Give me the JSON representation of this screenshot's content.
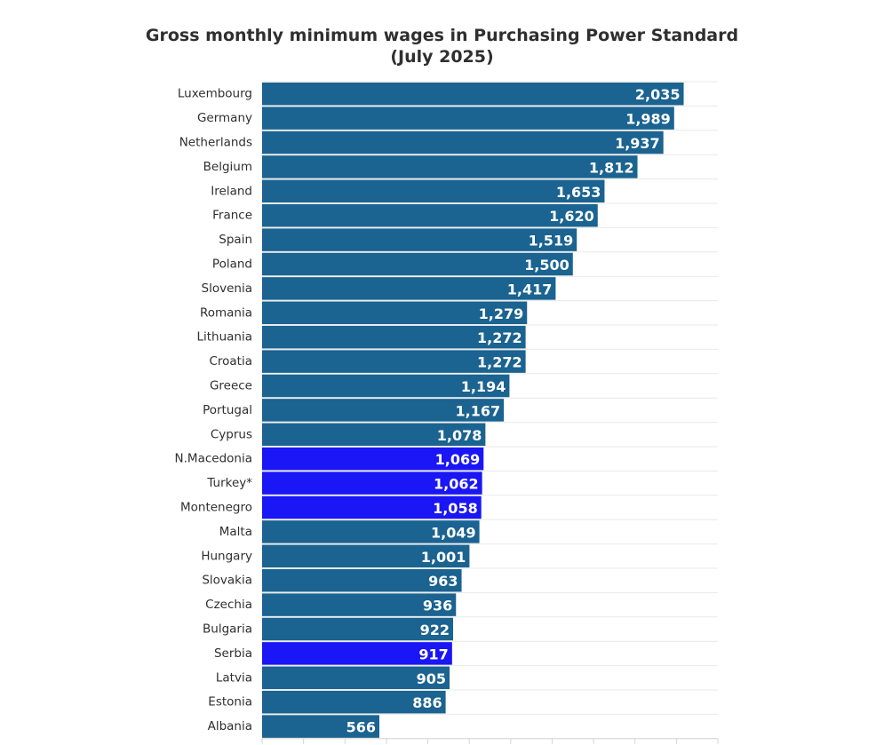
{
  "chart_data": {
    "type": "bar",
    "orientation": "horizontal",
    "title_lines": [
      "Gross monthly minimum wages in Purchasing Power Standard",
      "(July 2025)"
    ],
    "categories": [
      "Luxembourg",
      "Germany",
      "Netherlands",
      "Belgium",
      "Ireland",
      "France",
      "Spain",
      "Poland",
      "Slovenia",
      "Romania",
      "Lithuania",
      "Croatia",
      "Greece",
      "Portugal",
      "Cyprus",
      "N.Macedonia",
      "Turkey*",
      "Montenegro",
      "Malta",
      "Hungary",
      "Slovakia",
      "Czechia",
      "Bulgaria",
      "Serbia",
      "Latvia",
      "Estonia",
      "Albania"
    ],
    "values": [
      2035,
      1989,
      1937,
      1812,
      1653,
      1620,
      1519,
      1500,
      1417,
      1279,
      1272,
      1272,
      1194,
      1167,
      1078,
      1069,
      1062,
      1058,
      1049,
      1001,
      963,
      936,
      922,
      917,
      905,
      886,
      566
    ],
    "value_labels": [
      "2,035",
      "1,989",
      "1,937",
      "1,812",
      "1,653",
      "1,620",
      "1,519",
      "1,500",
      "1,417",
      "1,279",
      "1,272",
      "1,272",
      "1,194",
      "1,167",
      "1,078",
      "1,069",
      "1,062",
      "1,058",
      "1,049",
      "1,001",
      "963",
      "936",
      "922",
      "917",
      "905",
      "886",
      "566"
    ],
    "highlighted": [
      false,
      false,
      false,
      false,
      false,
      false,
      false,
      false,
      false,
      false,
      false,
      false,
      false,
      false,
      false,
      true,
      true,
      true,
      false,
      false,
      false,
      false,
      false,
      true,
      false,
      false,
      false
    ],
    "xlim": [
      0,
      2200
    ],
    "grid": true,
    "colors": {
      "default_bar": "#1b6390",
      "highlight_bar": "#1a16f5",
      "value_label": "#ffffff",
      "category_label": "#2f2f2f",
      "gridline": "#e9e9e9",
      "title": "#2f2f2f"
    }
  }
}
